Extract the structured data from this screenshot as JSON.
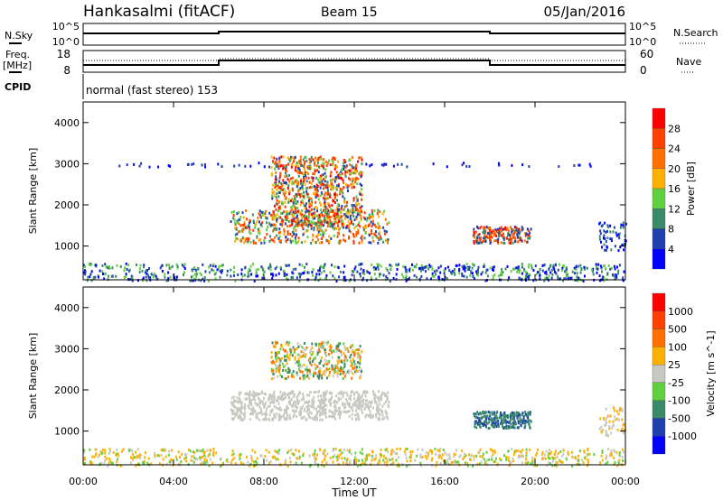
{
  "header": {
    "title": "Hankasalmi (fitACF)",
    "beam": "Beam 15",
    "date": "05/Jan/2016"
  },
  "nsky": {
    "label": "N.Sky",
    "ticks": [
      "10^5",
      "10^0"
    ],
    "right_label": "N.Search",
    "right_ticks": [
      "10^5",
      "10^0"
    ]
  },
  "freq": {
    "label1": "Freq.",
    "label2": "[MHz]",
    "ticks": [
      "18",
      "8"
    ],
    "right_label": "Nave",
    "right_ticks": [
      "60",
      "0"
    ]
  },
  "cpid": {
    "label": "CPID",
    "value": "normal (fast stereo) 153"
  },
  "chart_data": [
    {
      "type": "heatmap",
      "name": "power",
      "ylabel": "Slant Range [km]",
      "ylim": [
        180,
        4500
      ],
      "xlim": [
        0,
        24
      ],
      "yticks": [
        "1000",
        "2000",
        "3000",
        "4000"
      ],
      "colorbar": {
        "label": "Power [dB]",
        "ticks": [
          "4",
          "8",
          "12",
          "16",
          "20",
          "24",
          "28"
        ],
        "colors": [
          "#0000ff",
          "#2040b0",
          "#3a8a6a",
          "#60d040",
          "#ffb000",
          "#ff7000",
          "#ff4000",
          "#ff0000"
        ]
      },
      "regions": [
        {
          "t": [
            0,
            24
          ],
          "r": [
            180,
            600
          ],
          "n": 700,
          "c": [
            0,
            1,
            2,
            3
          ]
        },
        {
          "t": [
            1.5,
            22.5
          ],
          "r": [
            2950,
            3050
          ],
          "n": 60,
          "c": [
            0,
            1
          ]
        },
        {
          "t": [
            6.5,
            13.5
          ],
          "r": [
            1100,
            1900
          ],
          "n": 500,
          "c": [
            1,
            2,
            3,
            4,
            5,
            6
          ]
        },
        {
          "t": [
            8.3,
            12.3
          ],
          "r": [
            1500,
            3200
          ],
          "n": 800,
          "c": [
            1,
            2,
            3,
            4,
            5,
            6,
            7
          ]
        },
        {
          "t": [
            17.2,
            19.8
          ],
          "r": [
            1100,
            1500
          ],
          "n": 200,
          "c": [
            1,
            2,
            5,
            6,
            7
          ]
        },
        {
          "t": [
            22.8,
            24
          ],
          "r": [
            900,
            1600
          ],
          "n": 60,
          "c": [
            0,
            1,
            2
          ]
        }
      ]
    },
    {
      "type": "heatmap",
      "name": "velocity",
      "ylabel": "Slant Range [km]",
      "ylim": [
        180,
        4500
      ],
      "xlim": [
        0,
        24
      ],
      "yticks": [
        "1000",
        "2000",
        "3000",
        "4000"
      ],
      "colorbar": {
        "label": "Velocity [m s^-1]",
        "ticks": [
          "1000",
          "500",
          "100",
          "25",
          "-25",
          "-100",
          "-500",
          "-1000"
        ],
        "colors": [
          "#0000ff",
          "#2040b0",
          "#3a8a6a",
          "#60d040",
          "#c8c8c0",
          "#ffb000",
          "#ff7000",
          "#ff4000",
          "#ff0000"
        ]
      },
      "regions": [
        {
          "t": [
            0,
            24
          ],
          "r": [
            180,
            600
          ],
          "n": 700,
          "c": [
            4,
            5,
            5,
            3
          ]
        },
        {
          "t": [
            6.5,
            13.5
          ],
          "r": [
            1300,
            2000
          ],
          "n": 700,
          "c": [
            4,
            4,
            4
          ]
        },
        {
          "t": [
            8.3,
            12.3
          ],
          "r": [
            2300,
            3200
          ],
          "n": 400,
          "c": [
            2,
            3,
            5,
            6,
            4
          ]
        },
        {
          "t": [
            17.2,
            19.8
          ],
          "r": [
            1100,
            1500
          ],
          "n": 250,
          "c": [
            2,
            2,
            1
          ]
        },
        {
          "t": [
            22.8,
            24
          ],
          "r": [
            900,
            1600
          ],
          "n": 60,
          "c": [
            4,
            5
          ]
        }
      ]
    }
  ],
  "xaxis": {
    "label": "Time UT",
    "ticks": [
      "00:00",
      "04:00",
      "08:00",
      "12:00",
      "16:00",
      "20:00",
      "00:00"
    ]
  }
}
